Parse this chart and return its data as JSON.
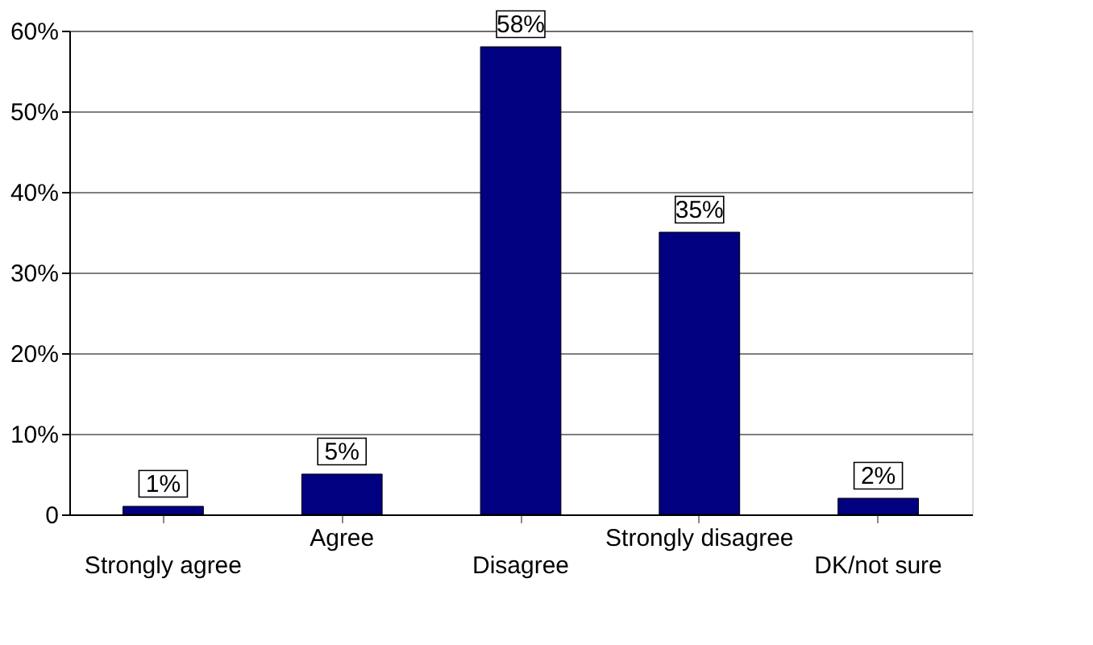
{
  "chart_data": {
    "type": "bar",
    "categories": [
      "Strongly agree",
      "Agree",
      "Disagree",
      "Strongly disagree",
      "DK/not sure"
    ],
    "values": [
      1,
      5,
      58,
      35,
      2
    ],
    "color": "#000080",
    "value_labels": [
      "1%",
      "5%",
      "58%",
      "35%",
      "2%"
    ],
    "ylim": [
      0,
      60
    ],
    "yticks": [
      {
        "value": 0,
        "label": "0"
      },
      {
        "value": 10,
        "label": "10%"
      },
      {
        "value": 20,
        "label": "20%"
      },
      {
        "value": 30,
        "label": "30%"
      },
      {
        "value": 40,
        "label": "40%"
      },
      {
        "value": 50,
        "label": "50%"
      },
      {
        "value": 60,
        "label": "60%"
      }
    ],
    "grid": "y"
  }
}
